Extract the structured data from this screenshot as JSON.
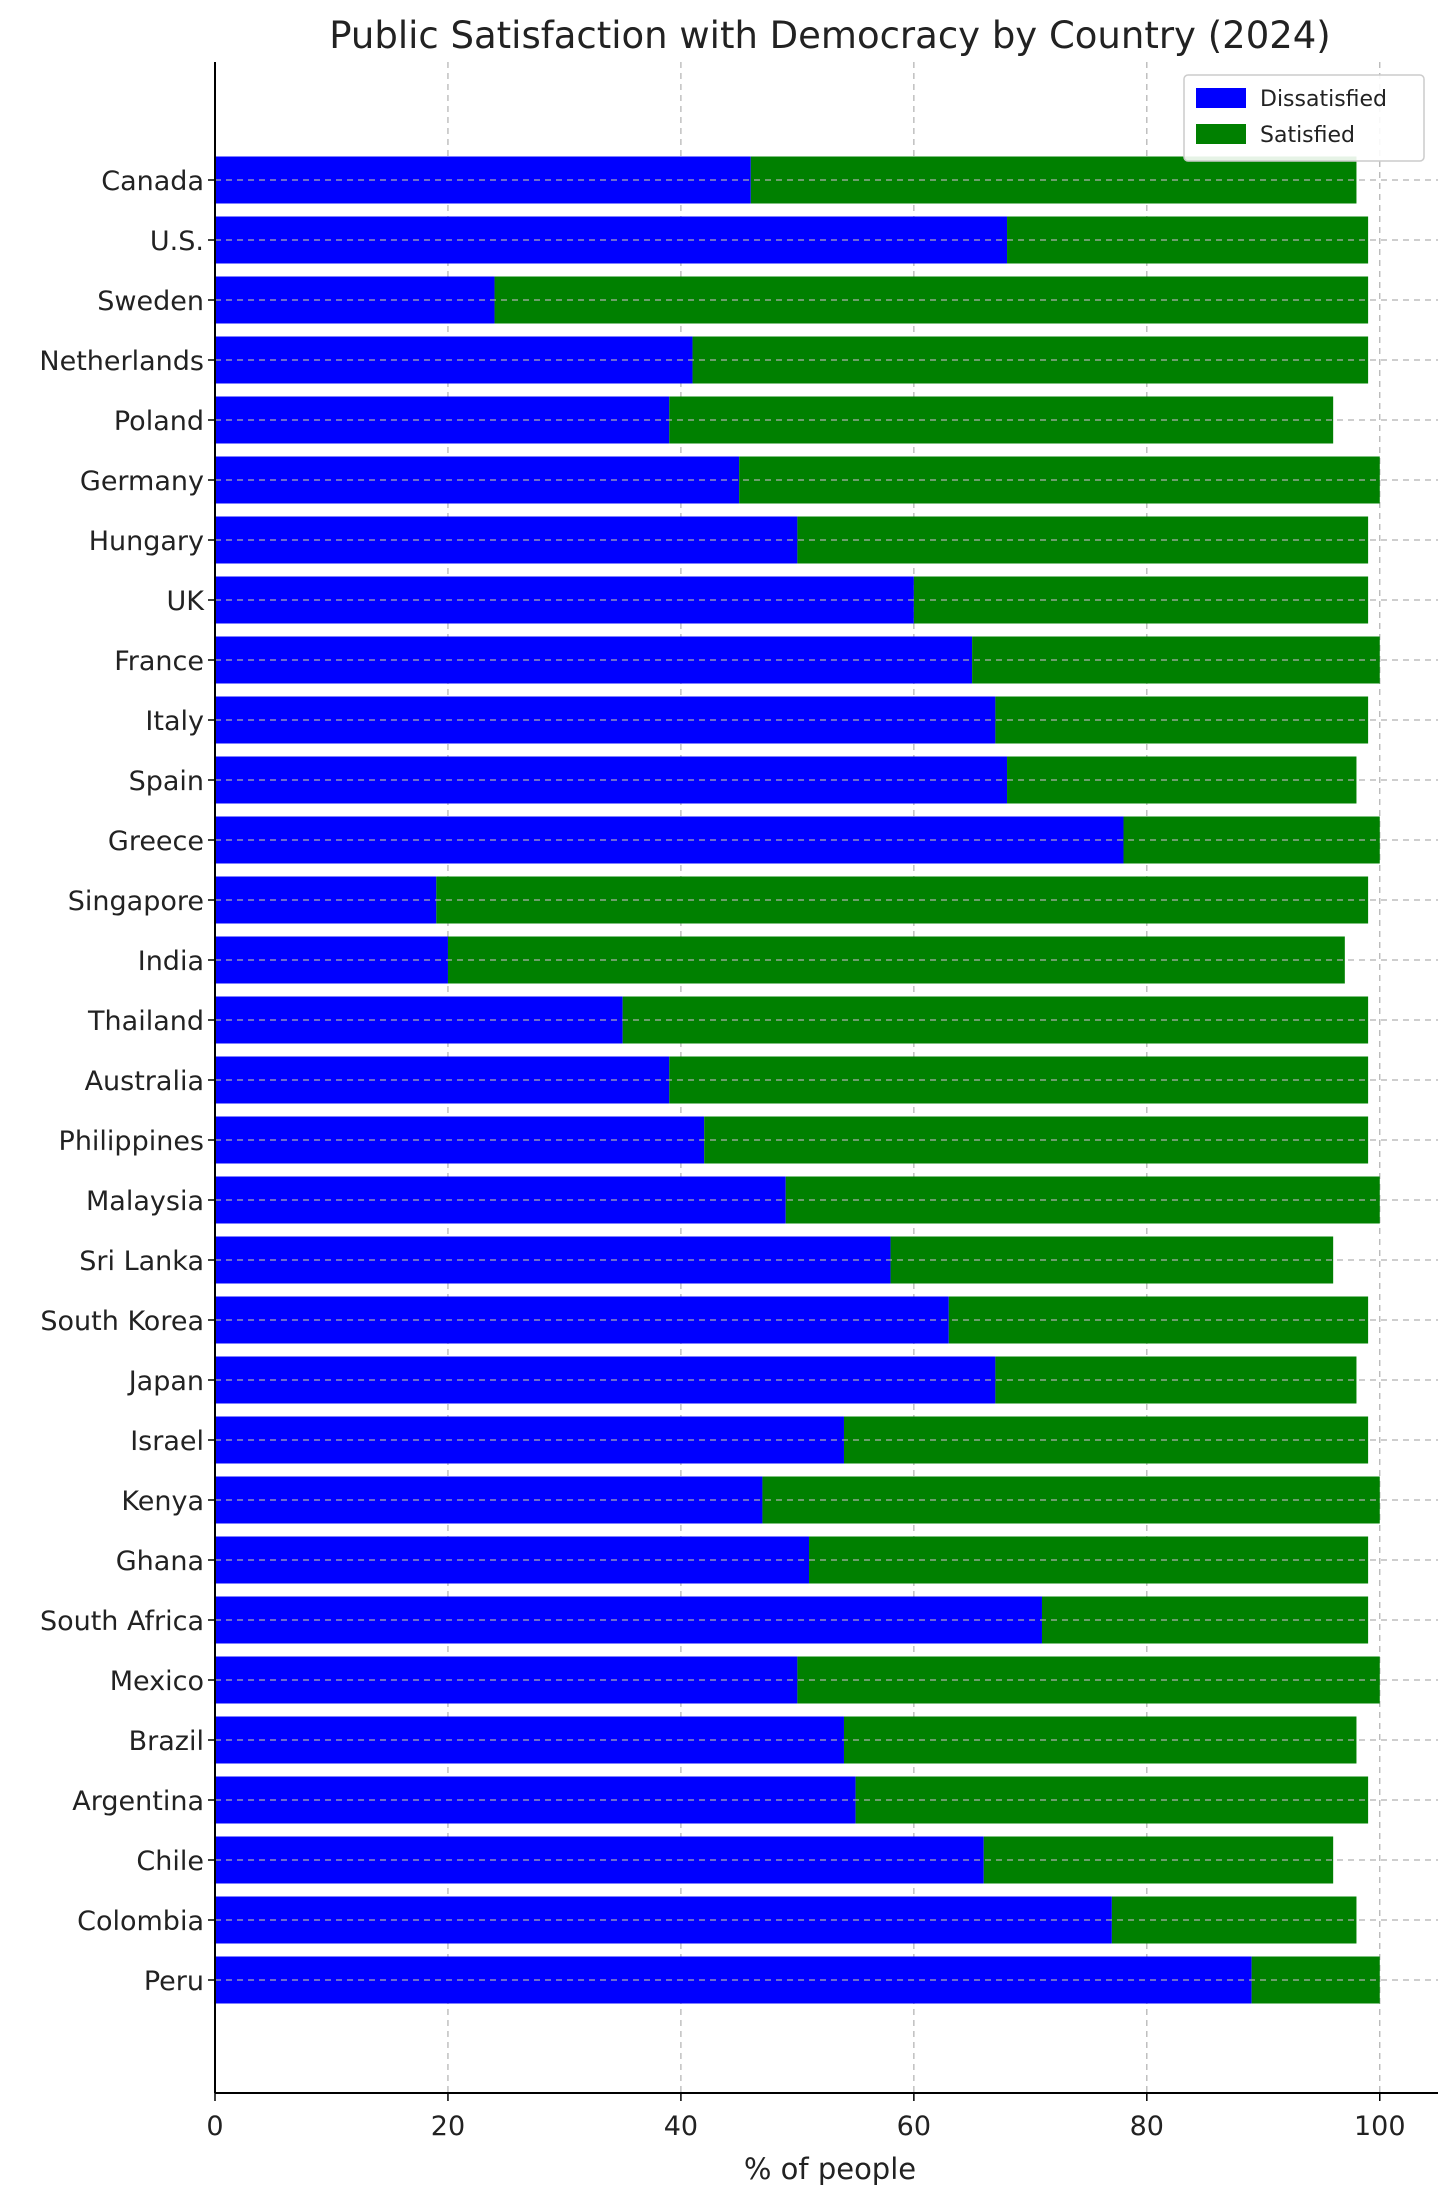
{
  "chart_data": {
    "type": "bar",
    "orientation": "horizontal",
    "stacked": true,
    "title": "Public Satisfaction with Democracy by Country (2024)",
    "xlabel": "% of people",
    "ylabel": "",
    "xlim": [
      0,
      105
    ],
    "xticks": [
      "0",
      "20",
      "40",
      "60",
      "80",
      "100"
    ],
    "grid": true,
    "legend_position": "top-right",
    "categories": [
      "Canada",
      "U.S.",
      "Sweden",
      "Netherlands",
      "Poland",
      "Germany",
      "Hungary",
      "UK",
      "France",
      "Italy",
      "Spain",
      "Greece",
      "Singapore",
      "India",
      "Thailand",
      "Australia",
      "Philippines",
      "Malaysia",
      "Sri Lanka",
      "South Korea",
      "Japan",
      "Israel",
      "Kenya",
      "Ghana",
      "South Africa",
      "Mexico",
      "Brazil",
      "Argentina",
      "Chile",
      "Colombia",
      "Peru"
    ],
    "series": [
      {
        "name": "Dissatisfied",
        "color": "#0000ff",
        "values": [
          46,
          68,
          24,
          41,
          39,
          45,
          50,
          60,
          65,
          67,
          68,
          78,
          19,
          20,
          35,
          39,
          42,
          49,
          58,
          63,
          67,
          54,
          47,
          51,
          71,
          50,
          54,
          55,
          66,
          77,
          89
        ]
      },
      {
        "name": "Satisfied",
        "color": "#008000",
        "values": [
          52,
          31,
          75,
          58,
          57,
          55,
          49,
          39,
          35,
          32,
          30,
          22,
          80,
          77,
          64,
          60,
          57,
          51,
          38,
          36,
          31,
          45,
          53,
          48,
          28,
          50,
          44,
          44,
          30,
          21,
          11
        ]
      }
    ]
  }
}
